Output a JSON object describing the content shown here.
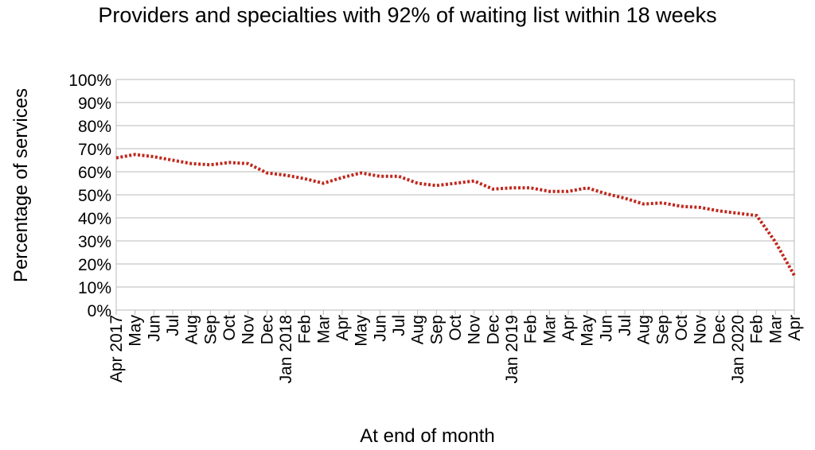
{
  "chart_data": {
    "type": "line",
    "title": "Providers and specialties with 92% of waiting list within 18 weeks",
    "xlabel": "At end of month",
    "ylabel": "Percentage  of  services",
    "y_ticks": [
      "0%",
      "10%",
      "20%",
      "30%",
      "40%",
      "50%",
      "60%",
      "70%",
      "80%",
      "90%",
      "100%"
    ],
    "ylim": [
      0,
      100
    ],
    "grid": true,
    "legend": "none",
    "x": [
      "Apr 2017",
      "May",
      "Jun",
      "Jul",
      "Aug",
      "Sep",
      "Oct",
      "Nov",
      "Dec",
      "Jan 2018",
      "Feb",
      "Mar",
      "Apr",
      "May",
      "Jun",
      "Jul",
      "Aug",
      "Sep",
      "Oct",
      "Nov",
      "Dec",
      "Jan 2019",
      "Feb",
      "Mar",
      "Apr",
      "May",
      "Jun",
      "Jul",
      "Aug",
      "Sep",
      "Oct",
      "Nov",
      "Dec",
      "Jan 2020",
      "Feb",
      "Mar",
      "Apr"
    ],
    "series": [
      {
        "color": "#c0281e",
        "line_style": "dotted",
        "values": [
          66,
          67.5,
          66.5,
          65,
          63.5,
          63,
          64,
          63.5,
          59.5,
          58.5,
          57,
          55,
          57.5,
          59.5,
          58,
          58,
          55,
          54,
          55,
          56,
          52.5,
          53,
          53,
          51.5,
          51.5,
          53,
          50.5,
          48.5,
          46,
          46.5,
          45,
          44.5,
          43,
          42,
          41,
          29.5,
          15
        ]
      }
    ]
  }
}
